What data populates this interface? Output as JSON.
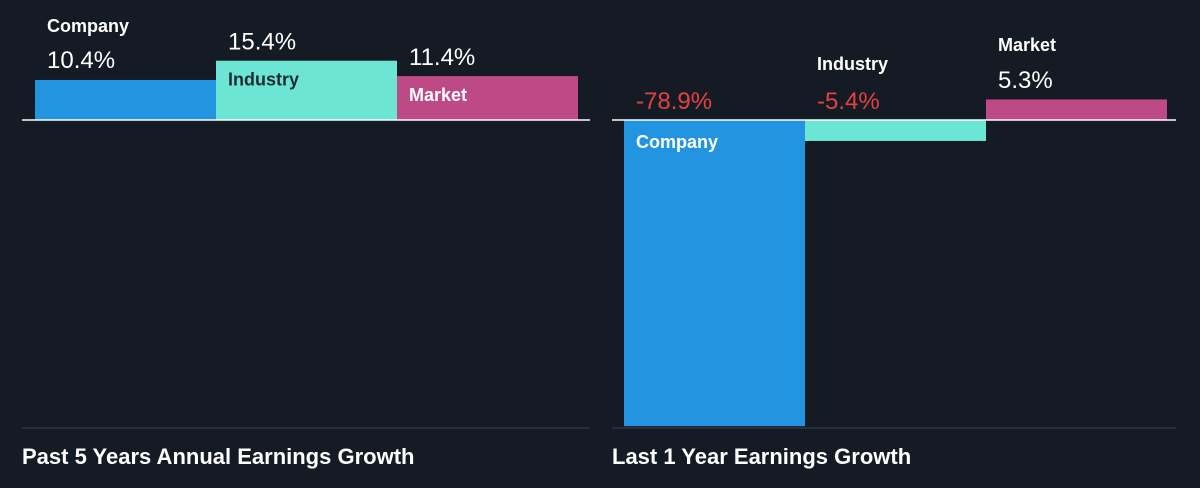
{
  "colors": {
    "background": "#151b24",
    "company": "#2394e0",
    "industry": "#6de5d4",
    "market": "#bd4a87",
    "positive_text": "#ffffff",
    "negative_text": "#e3423f",
    "baseline": "#ffffff",
    "divider": "#3a414c"
  },
  "chart_data": [
    {
      "type": "bar",
      "title": "Past 5 Years Annual Earnings Growth",
      "categories": [
        "Company",
        "Industry",
        "Market"
      ],
      "values": [
        10.4,
        15.4,
        11.4
      ],
      "value_labels": [
        "10.4%",
        "15.4%",
        "11.4%"
      ],
      "unit": "%",
      "ylim": [
        -72,
        16
      ],
      "grid": false,
      "legend": "none"
    },
    {
      "type": "bar",
      "title": "Last 1 Year Earnings Growth",
      "categories": [
        "Company",
        "Industry",
        "Market"
      ],
      "values": [
        -78.9,
        -5.4,
        5.3
      ],
      "value_labels": [
        "-78.9%",
        "-5.4%",
        "5.3%"
      ],
      "unit": "%",
      "ylim": [
        -78.9,
        5.3
      ],
      "grid": false,
      "legend": "none"
    }
  ]
}
